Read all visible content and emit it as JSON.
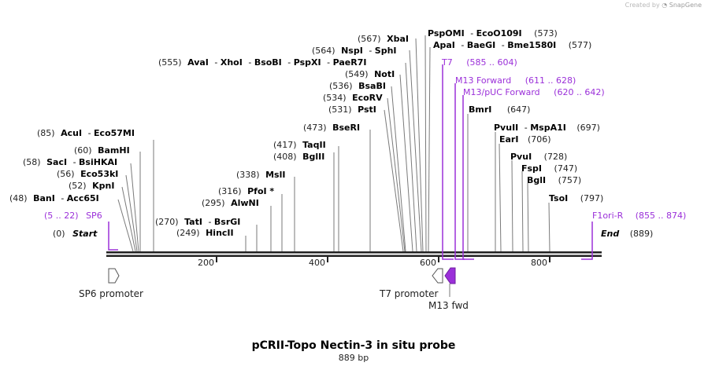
{
  "credit": {
    "prefix": "Created by",
    "brand": "SnapGene"
  },
  "map": {
    "name": "pCRII-Topo Nectin-3 in situ probe",
    "length_label": "889 bp",
    "start": {
      "pos": "(0)",
      "label": "Start"
    },
    "end": {
      "pos": "(889)",
      "label": "End"
    },
    "ruler": [
      "200",
      "400",
      "600",
      "800"
    ]
  },
  "sites": [
    {
      "pos": "(48)",
      "names": [
        "BanI",
        "Acc65I"
      ]
    },
    {
      "pos": "(52)",
      "names": [
        "KpnI"
      ]
    },
    {
      "pos": "(56)",
      "names": [
        "Eco53kI"
      ]
    },
    {
      "pos": "(58)",
      "names": [
        "SacI",
        "BsiHKAI"
      ]
    },
    {
      "pos": "(60)",
      "names": [
        "BamHI"
      ]
    },
    {
      "pos": "(85)",
      "names": [
        "AcuI",
        "Eco57MI"
      ]
    },
    {
      "pos": "(249)",
      "names": [
        "HincII"
      ]
    },
    {
      "pos": "(270)",
      "names": [
        "TatI",
        "BsrGI"
      ]
    },
    {
      "pos": "(295)",
      "names": [
        "AlwNI"
      ]
    },
    {
      "pos": "(316)",
      "names": [
        "PfoI *"
      ]
    },
    {
      "pos": "(338)",
      "names": [
        "MslI"
      ]
    },
    {
      "pos": "(408)",
      "names": [
        "BglII"
      ]
    },
    {
      "pos": "(417)",
      "names": [
        "TaqII"
      ]
    },
    {
      "pos": "(473)",
      "names": [
        "BseRI"
      ]
    },
    {
      "pos": "(531)",
      "names": [
        "PstI"
      ]
    },
    {
      "pos": "(534)",
      "names": [
        "EcoRV"
      ]
    },
    {
      "pos": "(536)",
      "names": [
        "BsaBI"
      ]
    },
    {
      "pos": "(549)",
      "names": [
        "NotI"
      ]
    },
    {
      "pos": "(555)",
      "names": [
        "AvaI",
        "XhoI",
        "BsoBI",
        "PspXI",
        "PaeR7I"
      ]
    },
    {
      "pos": "(564)",
      "names": [
        "NspI",
        "SphI"
      ]
    },
    {
      "pos": "(567)",
      "names": [
        "XbaI"
      ]
    },
    {
      "pos": "(573)",
      "names": [
        "PspOMI",
        "EcoO109I"
      ]
    },
    {
      "pos": "(577)",
      "names": [
        "ApaI",
        "BaeGI",
        "Bme1580I"
      ]
    },
    {
      "pos": "(647)",
      "names": [
        "BmrI"
      ]
    },
    {
      "pos": "(697)",
      "names": [
        "PvuII",
        "MspA1I"
      ]
    },
    {
      "pos": "(706)",
      "names": [
        "EarI"
      ]
    },
    {
      "pos": "(728)",
      "names": [
        "PvuI"
      ]
    },
    {
      "pos": "(747)",
      "names": [
        "FspI"
      ]
    },
    {
      "pos": "(757)",
      "names": [
        "BglI"
      ]
    },
    {
      "pos": "(797)",
      "names": [
        "TsoI"
      ]
    }
  ],
  "primers": [
    {
      "name": "SP6",
      "range": "(5 .. 22)"
    },
    {
      "name": "T7",
      "range": "(585 .. 604)"
    },
    {
      "name": "M13 Forward",
      "range": "(611 .. 628)"
    },
    {
      "name": "M13/pUC Forward",
      "range": "(620 .. 642)"
    },
    {
      "name": "F1ori-R",
      "range": "(855 .. 874)"
    }
  ],
  "features": [
    {
      "name": "SP6 promoter"
    },
    {
      "name": "T7 promoter"
    },
    {
      "name": "M13 fwd"
    }
  ],
  "colors": {
    "primer": "#9b30d9",
    "feature_fill": "#9b30d9",
    "backbone": "#222222",
    "line": "#7a7a7a"
  }
}
